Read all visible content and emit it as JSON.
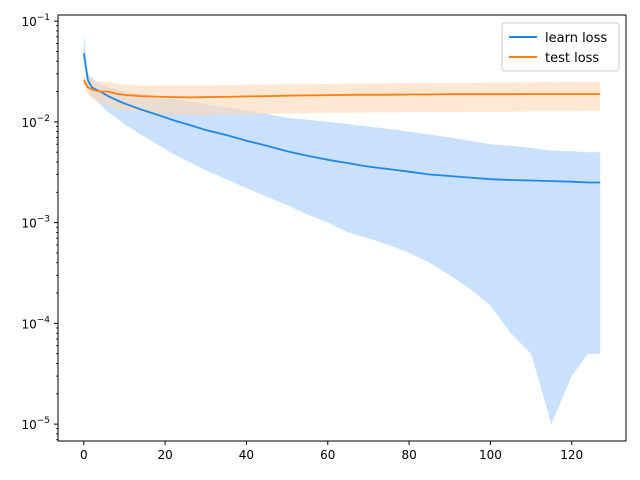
{
  "chart_data": {
    "type": "line",
    "title": "",
    "xlabel": "",
    "ylabel": "",
    "yscale": "log",
    "xlim": [
      -6.35,
      133.35
    ],
    "ylim": [
      6.8e-06,
      0.115
    ],
    "grid": false,
    "legend_placement": "top-right",
    "x_ticks": [
      0,
      20,
      40,
      60,
      80,
      100,
      120
    ],
    "x_tick_labels": [
      "0",
      "20",
      "40",
      "60",
      "80",
      "100",
      "120"
    ],
    "y_ticks": [
      1e-05,
      0.0001,
      0.001,
      0.01,
      0.1
    ],
    "y_tick_labels": [
      {
        "base": "10",
        "exp": "−5"
      },
      {
        "base": "10",
        "exp": "−4"
      },
      {
        "base": "10",
        "exp": "−3"
      },
      {
        "base": "10",
        "exp": "−2"
      },
      {
        "base": "10",
        "exp": "−1"
      }
    ],
    "series": [
      {
        "name": "learn loss",
        "color": "#1f88e5",
        "band_color": "#bfdcfb",
        "x": [
          0,
          1,
          2,
          4,
          6,
          8,
          10,
          14,
          18,
          22,
          26,
          30,
          35,
          40,
          45,
          50,
          55,
          60,
          65,
          70,
          75,
          80,
          85,
          90,
          95,
          100,
          105,
          110,
          115,
          120,
          124,
          127
        ],
        "y": [
          0.048,
          0.026,
          0.022,
          0.02,
          0.018,
          0.0165,
          0.0152,
          0.0133,
          0.0118,
          0.0104,
          0.0093,
          0.0083,
          0.0074,
          0.0065,
          0.0058,
          0.0051,
          0.0046,
          0.0042,
          0.0039,
          0.0036,
          0.0034,
          0.0032,
          0.003,
          0.0029,
          0.0028,
          0.0027,
          0.00265,
          0.00262,
          0.00258,
          0.00255,
          0.0025,
          0.0025
        ],
        "upper": [
          0.075,
          0.03,
          0.027,
          0.024,
          0.022,
          0.021,
          0.02,
          0.019,
          0.018,
          0.017,
          0.016,
          0.015,
          0.014,
          0.013,
          0.012,
          0.011,
          0.0105,
          0.01,
          0.0095,
          0.009,
          0.0085,
          0.008,
          0.0075,
          0.007,
          0.0065,
          0.006,
          0.0058,
          0.0055,
          0.0052,
          0.0051,
          0.005,
          0.005
        ],
        "lower": [
          0.04,
          0.022,
          0.018,
          0.015,
          0.0125,
          0.011,
          0.0095,
          0.0075,
          0.006,
          0.0048,
          0.004,
          0.0033,
          0.0027,
          0.0022,
          0.0018,
          0.0015,
          0.0012,
          0.001,
          0.0008,
          0.0007,
          0.0006,
          0.0005,
          0.0004,
          0.0003,
          0.00022,
          0.00015,
          8e-05,
          5e-05,
          1e-05,
          3e-05,
          5e-05,
          5e-05
        ]
      },
      {
        "name": "test loss",
        "color": "#ff7f0e",
        "band_color": "#ffd8b5",
        "x": [
          0,
          1,
          2,
          4,
          6,
          8,
          10,
          14,
          18,
          22,
          26,
          30,
          35,
          40,
          45,
          50,
          55,
          60,
          65,
          70,
          75,
          80,
          85,
          90,
          95,
          100,
          105,
          110,
          115,
          120,
          124,
          127
        ],
        "y": [
          0.026,
          0.022,
          0.021,
          0.02,
          0.02,
          0.019,
          0.0185,
          0.018,
          0.0178,
          0.0176,
          0.0175,
          0.0176,
          0.0177,
          0.0179,
          0.018,
          0.0182,
          0.0183,
          0.0184,
          0.0185,
          0.0186,
          0.0186,
          0.0187,
          0.0187,
          0.0188,
          0.0188,
          0.0188,
          0.0188,
          0.0189,
          0.0189,
          0.0189,
          0.0189,
          0.0189
        ],
        "upper": [
          0.03,
          0.027,
          0.026,
          0.025,
          0.025,
          0.024,
          0.0235,
          0.023,
          0.023,
          0.023,
          0.023,
          0.023,
          0.0232,
          0.0233,
          0.0235,
          0.0236,
          0.0237,
          0.0238,
          0.024,
          0.024,
          0.0242,
          0.0243,
          0.0244,
          0.0245,
          0.0245,
          0.0246,
          0.0246,
          0.0247,
          0.0247,
          0.0248,
          0.0248,
          0.0248
        ],
        "lower": [
          0.023,
          0.019,
          0.017,
          0.0155,
          0.0145,
          0.0135,
          0.013,
          0.0125,
          0.012,
          0.0118,
          0.0117,
          0.0117,
          0.0118,
          0.0119,
          0.012,
          0.0121,
          0.0122,
          0.0123,
          0.0123,
          0.0124,
          0.0124,
          0.0125,
          0.0125,
          0.0125,
          0.0126,
          0.0126,
          0.0126,
          0.0127,
          0.0127,
          0.0127,
          0.0128,
          0.0128
        ]
      }
    ]
  }
}
